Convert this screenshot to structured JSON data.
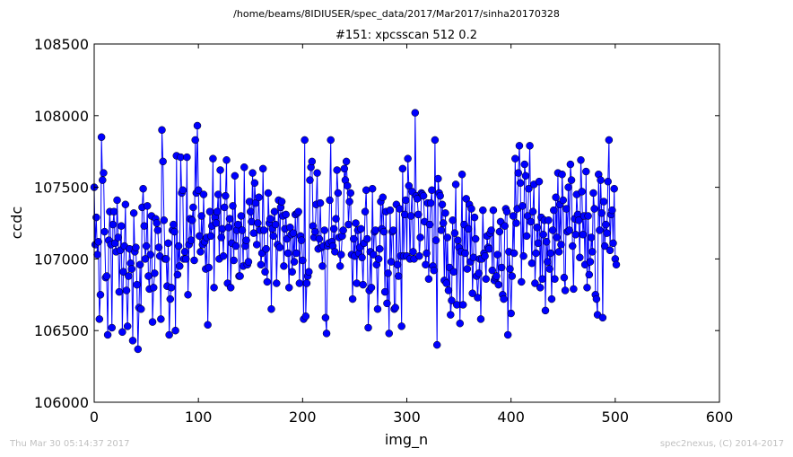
{
  "figure": {
    "suptitle": "/home/beams/8IDIUSER/spec_data/2017/Mar2017/sinha20170328",
    "footer_left": "Thu Mar 30 05:14:37 2017",
    "footer_right": "spec2nexus, (C) 2014-2017"
  },
  "chart_data": {
    "type": "line",
    "title": "#151: xpcsscan 512 0.2",
    "xlabel": "img_n",
    "ylabel": "ccdc",
    "xlim": [
      0,
      600
    ],
    "ylim": [
      106000,
      108500
    ],
    "xticks": [
      0,
      100,
      200,
      300,
      400,
      500,
      600
    ],
    "yticks": [
      106000,
      106500,
      107000,
      107500,
      108000,
      108500
    ],
    "grid": false,
    "marker": "circle",
    "series_color": "#0000ff",
    "series": [
      {
        "x_start": 0,
        "x_step": 1,
        "values": [
          107500,
          107100,
          107290,
          107030,
          107120,
          106580,
          106750,
          107850,
          107550,
          107600,
          107190,
          106870,
          106880,
          106470,
          107130,
          107330,
          107100,
          106520,
          107240,
          107330,
          107110,
          107050,
          107410,
          107150,
          106770,
          107060,
          107230,
          106490,
          106910,
          107090,
          107380,
          106780,
          106530,
          106880,
          107070,
          106970,
          106930,
          106430,
          107320,
          107050,
          107080,
          106820,
          106370,
          106660,
          106960,
          106650,
          107360,
          107490,
          107230,
          107000,
          107090,
          107370,
          106880,
          106790,
          107030,
          107300,
          106560,
          106800,
          106900,
          107280,
          107250,
          107200,
          107080,
          107020,
          106580,
          107900,
          107680,
          107270,
          107000,
          107000,
          106810,
          107110,
          106470,
          106720,
          106800,
          107200,
          107240,
          107190,
          106500,
          107720,
          106890,
          107090,
          106950,
          107710,
          107460,
          107480,
          107000,
          107050,
          107000,
          107710,
          106750,
          107100,
          107280,
          107130,
          107270,
          107360,
          106990,
          107830,
          107460,
          107930,
          107480,
          107160,
          107050,
          107300,
          107100,
          107450,
          107120,
          106930,
          107150,
          106540,
          106940,
          107330,
          107160,
          107230,
          107700,
          106800,
          107290,
          107250,
          107330,
          107450,
          107000,
          107620,
          107150,
          107210,
          107020,
          107360,
          107440,
          107690,
          106830,
          107220,
          107280,
          106800,
          107110,
          107370,
          106990,
          107580,
          107090,
          107200,
          107240,
          106880,
          106880,
          107300,
          107200,
          106950,
          107640,
          107090,
          107130,
          106960,
          106980,
          107400,
          107330,
          107260,
          107600,
          107180,
          107530,
          107390,
          107100,
          107250,
          107430,
          107200,
          106960,
          107040,
          107630,
          107200,
          106910,
          107070,
          106840,
          107460,
          107250,
          107280,
          106650,
          107210,
          107160,
          107330,
          107240,
          106830,
          107100,
          107410,
          107080,
          107360,
          107400,
          107300,
          106950,
          107210,
          107310,
          107140,
          107040,
          106800,
          107220,
          107170,
          106910,
          107180,
          106980,
          107310,
          107040,
          107320,
          107330,
          106830,
          107160,
          107130,
          106990,
          106580,
          107830,
          106600,
          106830,
          106880,
          106910,
          107550,
          107640,
          107680,
          107230,
          107150,
          107190,
          107380,
          107600,
          107070,
          107140,
          107390,
          107080,
          106950,
          107090,
          107200,
          106590,
          106480,
          107090,
          107110,
          107410,
          107830,
          107120,
          107090,
          107210,
          107050,
          107280,
          107620,
          107460,
          107150,
          106950,
          107030,
          107160,
          107200,
          107630,
          107550,
          107680,
          107510,
          107240,
          107400,
          107460,
          107030,
          106720,
          107140,
          107020,
          107250,
          106830,
          107200,
          107040,
          107080,
          107210,
          107010,
          106820,
          107110,
          107330,
          107480,
          107140,
          106520,
          106780,
          107050,
          106800,
          107490,
          107030,
          107190,
          107200,
          106960,
          106650,
          107000,
          107070,
          107400,
          107210,
          107430,
          107190,
          106770,
          107330,
          106690,
          106900,
          106480,
          107340,
          106980,
          107190,
          107200,
          106650,
          106660,
          107380,
          106960,
          106880,
          107350,
          107020,
          106530,
          107630,
          107020,
          107310,
          107410,
          107020,
          107700,
          107510,
          107000,
          107300,
          107470,
          107050,
          107000,
          108020,
          107440,
          107420,
          107310,
          107020,
          107150,
          107460,
          107450,
          107440,
          107260,
          106960,
          107040,
          107390,
          106860,
          107240,
          107390,
          107480,
          106950,
          106920,
          107830,
          107130,
          106400,
          107560,
          107460,
          107440,
          107200,
          107380,
          107250,
          106850,
          107320,
          106830,
          107150,
          106780,
          106940,
          106610,
          106710,
          107270,
          106910,
          107180,
          107520,
          106680,
          107130,
          107080,
          106550,
          107050,
          107590,
          106680,
          107240,
          107040,
          107420,
          106930,
          107210,
          107380,
          106980,
          107350,
          106760,
          107010,
          107290,
          107140,
          106880,
          106730,
          106900,
          107000,
          106580,
          107000,
          107340,
          107040,
          107020,
          106860,
          107160,
          107080,
          107070,
          107180,
          107200,
          106920,
          107340,
          106850,
          106870,
          106880,
          107030,
          106820,
          107190,
          107260,
          106940,
          106750,
          106720,
          107230,
          107350,
          107330,
          106470,
          107050,
          106930,
          106620,
          106880,
          107300,
          107040,
          107700,
          107250,
          107350,
          107600,
          107790,
          107530,
          106840,
          107370,
          107020,
          107660,
          107580,
          107160,
          107300,
          107490,
          107790,
          107260,
          106970,
          107330,
          107520,
          106830,
          107040,
          107220,
          107110,
          107540,
          106800,
          107290,
          106860,
          107170,
          107270,
          106640,
          107120,
          106980,
          107270,
          106930,
          107040,
          106720,
          107200,
          107340,
          106860,
          107430,
          107150,
          107600,
          107050,
          107380,
          107100,
          107590,
          107410,
          106870,
          106780,
          107350,
          107190,
          107500,
          107200,
          107660,
          107550,
          107090,
          106790,
          107280,
          107170,
          107450,
          107310,
          107270,
          107010,
          107690,
          107470,
          107170,
          107300,
          106960,
          107610,
          106800,
          107300,
          106890,
          106980,
          107150,
          107050,
          107460,
          107350,
          106750,
          106720,
          106610,
          107590,
          107200,
          107550,
          107320,
          106590,
          107400,
          107090,
          107240,
          107180,
          107540,
          107830,
          107060,
          107310,
          107340,
          107110,
          107490,
          107000,
          106960
        ]
      }
    ]
  }
}
